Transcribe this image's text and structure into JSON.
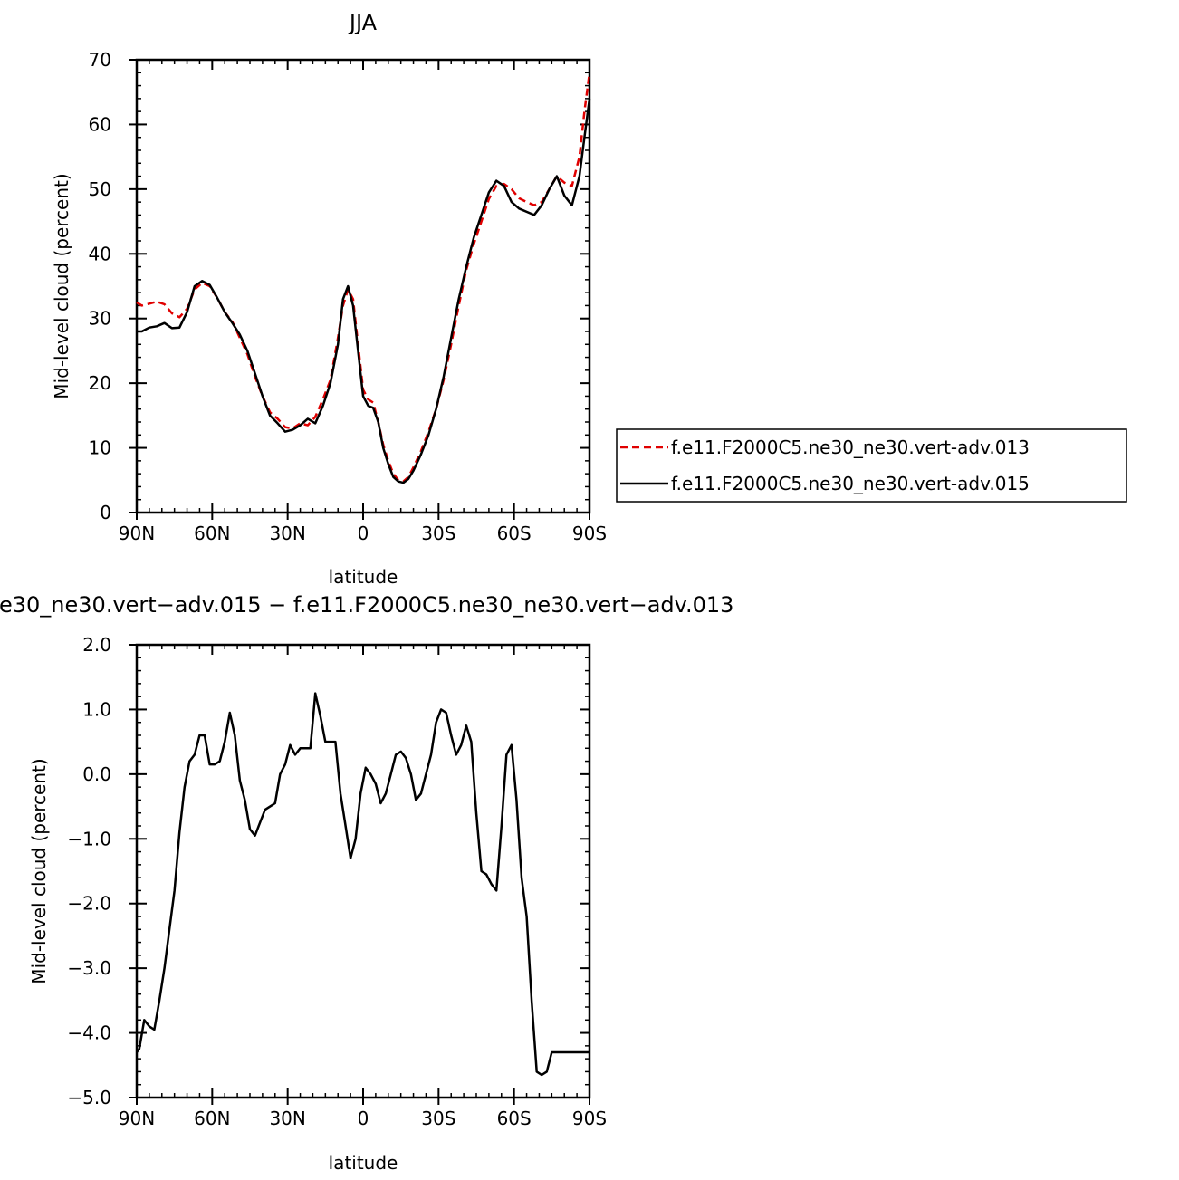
{
  "chart_data": [
    {
      "type": "line",
      "title": "JJA",
      "xlabel": "latitude",
      "ylabel": "Mid-level cloud (percent)",
      "xlim": [
        90,
        -90
      ],
      "ylim": [
        0,
        70
      ],
      "xticks": [
        90,
        60,
        30,
        0,
        -30,
        -60,
        -90
      ],
      "xtick_labels": [
        "90N",
        "60N",
        "30N",
        "0",
        "30S",
        "60S",
        "90S"
      ],
      "yticks": [
        0,
        10,
        20,
        30,
        40,
        50,
        60,
        70
      ],
      "ytick_labels": [
        "0",
        "10",
        "20",
        "30",
        "40",
        "50",
        "60",
        "70"
      ],
      "grid": false,
      "legend_position": "right-outside",
      "series": [
        {
          "name": "f.e11.F2000C5.ne30_ne30.vert-adv.013",
          "color": "#e00000",
          "dash": "dashed",
          "x": [
            90,
            88,
            85,
            82,
            79,
            76,
            73,
            70,
            67,
            64,
            61,
            58,
            55,
            52,
            49,
            46,
            43,
            40,
            37,
            34,
            31,
            28,
            25,
            22,
            19,
            16,
            13,
            10,
            8,
            6,
            4,
            2,
            0,
            -2,
            -4,
            -6,
            -8,
            -10,
            -12,
            -14,
            -16,
            -18,
            -20,
            -23,
            -26,
            -29,
            -32,
            -35,
            -38,
            -41,
            -44,
            -47,
            -50,
            -53,
            -56,
            -59,
            -62,
            -65,
            -68,
            -71,
            -74,
            -77,
            -80,
            -83,
            -86,
            -88,
            -90
          ],
          "y": [
            32.5,
            32.0,
            32.3,
            32.6,
            32.2,
            30.8,
            30.2,
            31.5,
            34.5,
            35.5,
            35.0,
            33.2,
            31.0,
            29.5,
            27.0,
            24.5,
            21.0,
            18.0,
            15.5,
            14.5,
            13.2,
            13.0,
            13.8,
            13.5,
            14.8,
            17.5,
            20.5,
            27.0,
            32.0,
            34.5,
            33.0,
            26.0,
            19.0,
            17.5,
            17.0,
            14.0,
            10.5,
            8.0,
            6.0,
            5.0,
            4.8,
            5.5,
            7.0,
            9.5,
            12.5,
            16.0,
            20.5,
            26.0,
            32.0,
            37.5,
            41.5,
            45.0,
            48.5,
            50.5,
            50.8,
            50.0,
            48.6,
            48.0,
            47.5,
            48.0,
            50.0,
            52.0,
            51.0,
            50.5,
            55.0,
            62.0,
            68.0
          ]
        },
        {
          "name": "f.e11.F2000C5.ne30_ne30.vert-adv.015",
          "color": "#000000",
          "dash": "solid",
          "x": [
            90,
            88,
            85,
            82,
            79,
            76,
            73,
            70,
            67,
            64,
            61,
            58,
            55,
            52,
            49,
            46,
            43,
            40,
            37,
            34,
            31,
            28,
            25,
            22,
            19,
            16,
            13,
            10,
            8,
            6,
            4,
            2,
            0,
            -2,
            -4,
            -6,
            -8,
            -10,
            -12,
            -14,
            -16,
            -18,
            -20,
            -23,
            -26,
            -29,
            -32,
            -35,
            -38,
            -41,
            -44,
            -47,
            -50,
            -53,
            -56,
            -59,
            -62,
            -65,
            -68,
            -71,
            -74,
            -77,
            -80,
            -83,
            -86,
            -88,
            -90
          ],
          "y": [
            28.0,
            28.0,
            28.6,
            28.8,
            29.3,
            28.5,
            28.6,
            31.0,
            35.0,
            35.8,
            35.2,
            33.2,
            31.0,
            29.3,
            27.5,
            25.0,
            21.5,
            18.0,
            15.0,
            13.8,
            12.5,
            12.8,
            13.5,
            14.5,
            13.8,
            16.5,
            20.0,
            26.0,
            33.0,
            35.0,
            32.0,
            25.0,
            18.0,
            16.5,
            16.2,
            14.0,
            10.0,
            7.5,
            5.5,
            4.8,
            4.6,
            5.2,
            6.5,
            9.0,
            12.0,
            16.0,
            21.0,
            27.0,
            33.0,
            38.0,
            42.5,
            46.0,
            49.5,
            51.3,
            50.5,
            48.0,
            47.0,
            46.5,
            46.0,
            47.5,
            50.0,
            52.0,
            49.0,
            47.5,
            52.0,
            58.0,
            64.0
          ]
        }
      ]
    },
    {
      "type": "line",
      "title": "e30_ne30.vert−adv.015 − f.e11.F2000C5.ne30_ne30.vert−adv.013",
      "xlabel": "latitude",
      "ylabel": "Mid-level cloud (percent)",
      "xlim": [
        90,
        -90
      ],
      "ylim": [
        -5,
        2
      ],
      "xticks": [
        90,
        60,
        30,
        0,
        -30,
        -60,
        -90
      ],
      "xtick_labels": [
        "90N",
        "60N",
        "30N",
        "0",
        "30S",
        "60S",
        "90S"
      ],
      "yticks": [
        2,
        1,
        0,
        -1,
        -2,
        -3,
        -4,
        -5
      ],
      "ytick_labels": [
        "2.0",
        "1.0",
        "0.0",
        "−1.0",
        "−2.0",
        "−3.0",
        "−4.0",
        "−5.0"
      ],
      "grid": false,
      "series": [
        {
          "color": "#000000",
          "dash": "solid",
          "x": [
            90,
            89,
            87,
            85,
            83,
            81,
            79,
            77,
            75,
            73,
            71,
            69,
            67,
            65,
            63,
            61,
            59,
            57,
            55,
            53,
            51,
            49,
            47,
            45,
            43,
            41,
            39,
            37,
            35,
            33,
            31,
            29,
            27,
            25,
            23,
            21,
            19,
            17,
            15,
            13,
            11,
            9,
            7,
            5,
            3,
            1,
            -1,
            -3,
            -5,
            -7,
            -9,
            -11,
            -13,
            -15,
            -17,
            -19,
            -21,
            -23,
            -25,
            -27,
            -29,
            -31,
            -33,
            -35,
            -37,
            -39,
            -41,
            -43,
            -45,
            -47,
            -49,
            -51,
            -53,
            -55,
            -57,
            -59,
            -61,
            -63,
            -65,
            -67,
            -69,
            -71,
            -73,
            -75,
            -77,
            -79,
            -81,
            -83,
            -85,
            -87,
            -89,
            -90
          ],
          "y": [
            -4.3,
            -4.25,
            -3.8,
            -3.9,
            -3.95,
            -3.5,
            -3.0,
            -2.4,
            -1.8,
            -0.9,
            -0.2,
            0.2,
            0.3,
            0.6,
            0.6,
            0.15,
            0.15,
            0.2,
            0.5,
            0.95,
            0.6,
            -0.1,
            -0.4,
            -0.85,
            -0.95,
            -0.75,
            -0.55,
            -0.5,
            -0.45,
            0.0,
            0.15,
            0.45,
            0.3,
            0.4,
            0.4,
            0.4,
            1.25,
            0.9,
            0.5,
            0.5,
            0.5,
            -0.3,
            -0.8,
            -1.3,
            -1.0,
            -0.3,
            0.1,
            0.0,
            -0.15,
            -0.45,
            -0.3,
            0.0,
            0.3,
            0.35,
            0.25,
            0.0,
            -0.4,
            -0.3,
            0.0,
            0.3,
            0.8,
            1.0,
            0.95,
            0.6,
            0.3,
            0.45,
            0.75,
            0.5,
            -0.6,
            -1.5,
            -1.55,
            -1.7,
            -1.8,
            -0.8,
            0.3,
            0.45,
            -0.4,
            -1.6,
            -2.2,
            -3.5,
            -4.6,
            -4.65,
            -4.6,
            -4.3,
            -4.3,
            -4.3,
            -4.3,
            -4.3,
            -4.3,
            -4.3,
            -4.3,
            -4.3
          ]
        }
      ]
    }
  ]
}
